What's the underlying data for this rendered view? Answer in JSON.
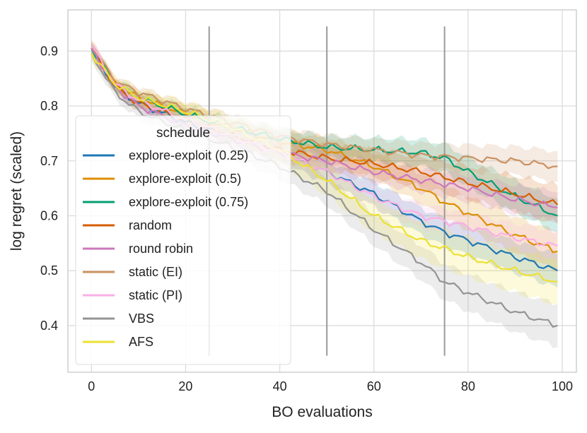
{
  "chart_data": {
    "type": "line",
    "title": "",
    "xlabel": "BO evaluations",
    "ylabel": "log regret (scaled)",
    "xlim": [
      -5,
      103
    ],
    "ylim": [
      0.315,
      0.975
    ],
    "grid": true,
    "xticks": [
      0,
      20,
      40,
      60,
      80,
      100
    ],
    "yticks": [
      0.4,
      0.5,
      0.6,
      0.7,
      0.8,
      0.9
    ],
    "vlines": [
      25,
      50,
      75
    ],
    "vline_range": [
      0.345,
      0.945
    ],
    "legend": {
      "title": "schedule",
      "location": "lower-left"
    },
    "series": [
      {
        "name": "explore-exploit (0.25)",
        "color": "#1f77b4",
        "band": 0.022,
        "keypoints": [
          [
            0,
            0.905
          ],
          [
            5,
            0.835
          ],
          [
            10,
            0.805
          ],
          [
            20,
            0.77
          ],
          [
            30,
            0.745
          ],
          [
            40,
            0.715
          ],
          [
            50,
            0.68
          ],
          [
            60,
            0.64
          ],
          [
            65,
            0.615
          ],
          [
            70,
            0.59
          ],
          [
            75,
            0.57
          ],
          [
            80,
            0.555
          ],
          [
            90,
            0.525
          ],
          [
            99,
            0.5
          ]
        ]
      },
      {
        "name": "explore-exploit (0.5)",
        "color": "#de8f05",
        "band": 0.025,
        "keypoints": [
          [
            0,
            0.905
          ],
          [
            5,
            0.84
          ],
          [
            10,
            0.815
          ],
          [
            20,
            0.785
          ],
          [
            30,
            0.76
          ],
          [
            40,
            0.735
          ],
          [
            50,
            0.72
          ],
          [
            60,
            0.69
          ],
          [
            70,
            0.65
          ],
          [
            75,
            0.625
          ],
          [
            80,
            0.605
          ],
          [
            90,
            0.565
          ],
          [
            99,
            0.535
          ]
        ]
      },
      {
        "name": "explore-exploit (0.75)",
        "color": "#029e73",
        "band": 0.022,
        "keypoints": [
          [
            0,
            0.905
          ],
          [
            5,
            0.84
          ],
          [
            10,
            0.815
          ],
          [
            20,
            0.785
          ],
          [
            30,
            0.76
          ],
          [
            40,
            0.74
          ],
          [
            50,
            0.725
          ],
          [
            60,
            0.72
          ],
          [
            70,
            0.715
          ],
          [
            75,
            0.705
          ],
          [
            80,
            0.68
          ],
          [
            90,
            0.635
          ],
          [
            99,
            0.6
          ]
        ]
      },
      {
        "name": "random",
        "color": "#d55e00",
        "band": 0.025,
        "keypoints": [
          [
            0,
            0.91
          ],
          [
            5,
            0.835
          ],
          [
            10,
            0.805
          ],
          [
            20,
            0.775
          ],
          [
            30,
            0.745
          ],
          [
            40,
            0.72
          ],
          [
            50,
            0.705
          ],
          [
            60,
            0.695
          ],
          [
            70,
            0.68
          ],
          [
            80,
            0.66
          ],
          [
            90,
            0.64
          ],
          [
            99,
            0.62
          ]
        ]
      },
      {
        "name": "round robin",
        "color": "#cc78bc",
        "band": 0.02,
        "keypoints": [
          [
            0,
            0.905
          ],
          [
            5,
            0.835
          ],
          [
            10,
            0.8
          ],
          [
            20,
            0.765
          ],
          [
            30,
            0.74
          ],
          [
            40,
            0.715
          ],
          [
            50,
            0.7
          ],
          [
            60,
            0.68
          ],
          [
            70,
            0.665
          ],
          [
            80,
            0.65
          ],
          [
            90,
            0.63
          ],
          [
            99,
            0.615
          ]
        ]
      },
      {
        "name": "static (EI)",
        "color": "#ca9161",
        "band": 0.02,
        "keypoints": [
          [
            0,
            0.91
          ],
          [
            5,
            0.845
          ],
          [
            10,
            0.825
          ],
          [
            20,
            0.795
          ],
          [
            30,
            0.77
          ],
          [
            40,
            0.745
          ],
          [
            50,
            0.73
          ],
          [
            60,
            0.72
          ],
          [
            70,
            0.71
          ],
          [
            80,
            0.705
          ],
          [
            90,
            0.7
          ],
          [
            99,
            0.69
          ]
        ]
      },
      {
        "name": "static (PI)",
        "color": "#fbafe4",
        "band": 0.02,
        "keypoints": [
          [
            0,
            0.91
          ],
          [
            5,
            0.84
          ],
          [
            10,
            0.81
          ],
          [
            20,
            0.775
          ],
          [
            30,
            0.745
          ],
          [
            40,
            0.715
          ],
          [
            50,
            0.68
          ],
          [
            60,
            0.635
          ],
          [
            70,
            0.6
          ],
          [
            80,
            0.58
          ],
          [
            90,
            0.56
          ],
          [
            99,
            0.545
          ]
        ]
      },
      {
        "name": "VBS",
        "color": "#949494",
        "band": 0.028,
        "keypoints": [
          [
            0,
            0.895
          ],
          [
            5,
            0.825
          ],
          [
            10,
            0.79
          ],
          [
            20,
            0.755
          ],
          [
            30,
            0.725
          ],
          [
            40,
            0.69
          ],
          [
            50,
            0.645
          ],
          [
            55,
            0.61
          ],
          [
            60,
            0.575
          ],
          [
            65,
            0.545
          ],
          [
            70,
            0.515
          ],
          [
            75,
            0.48
          ],
          [
            80,
            0.46
          ],
          [
            90,
            0.425
          ],
          [
            99,
            0.4
          ]
        ]
      },
      {
        "name": "AFS",
        "color": "#ece133",
        "band": 0.03,
        "keypoints": [
          [
            0,
            0.895
          ],
          [
            5,
            0.84
          ],
          [
            10,
            0.815
          ],
          [
            20,
            0.79
          ],
          [
            30,
            0.76
          ],
          [
            40,
            0.72
          ],
          [
            50,
            0.665
          ],
          [
            60,
            0.6
          ],
          [
            70,
            0.555
          ],
          [
            80,
            0.525
          ],
          [
            90,
            0.5
          ],
          [
            99,
            0.48
          ]
        ]
      }
    ]
  }
}
